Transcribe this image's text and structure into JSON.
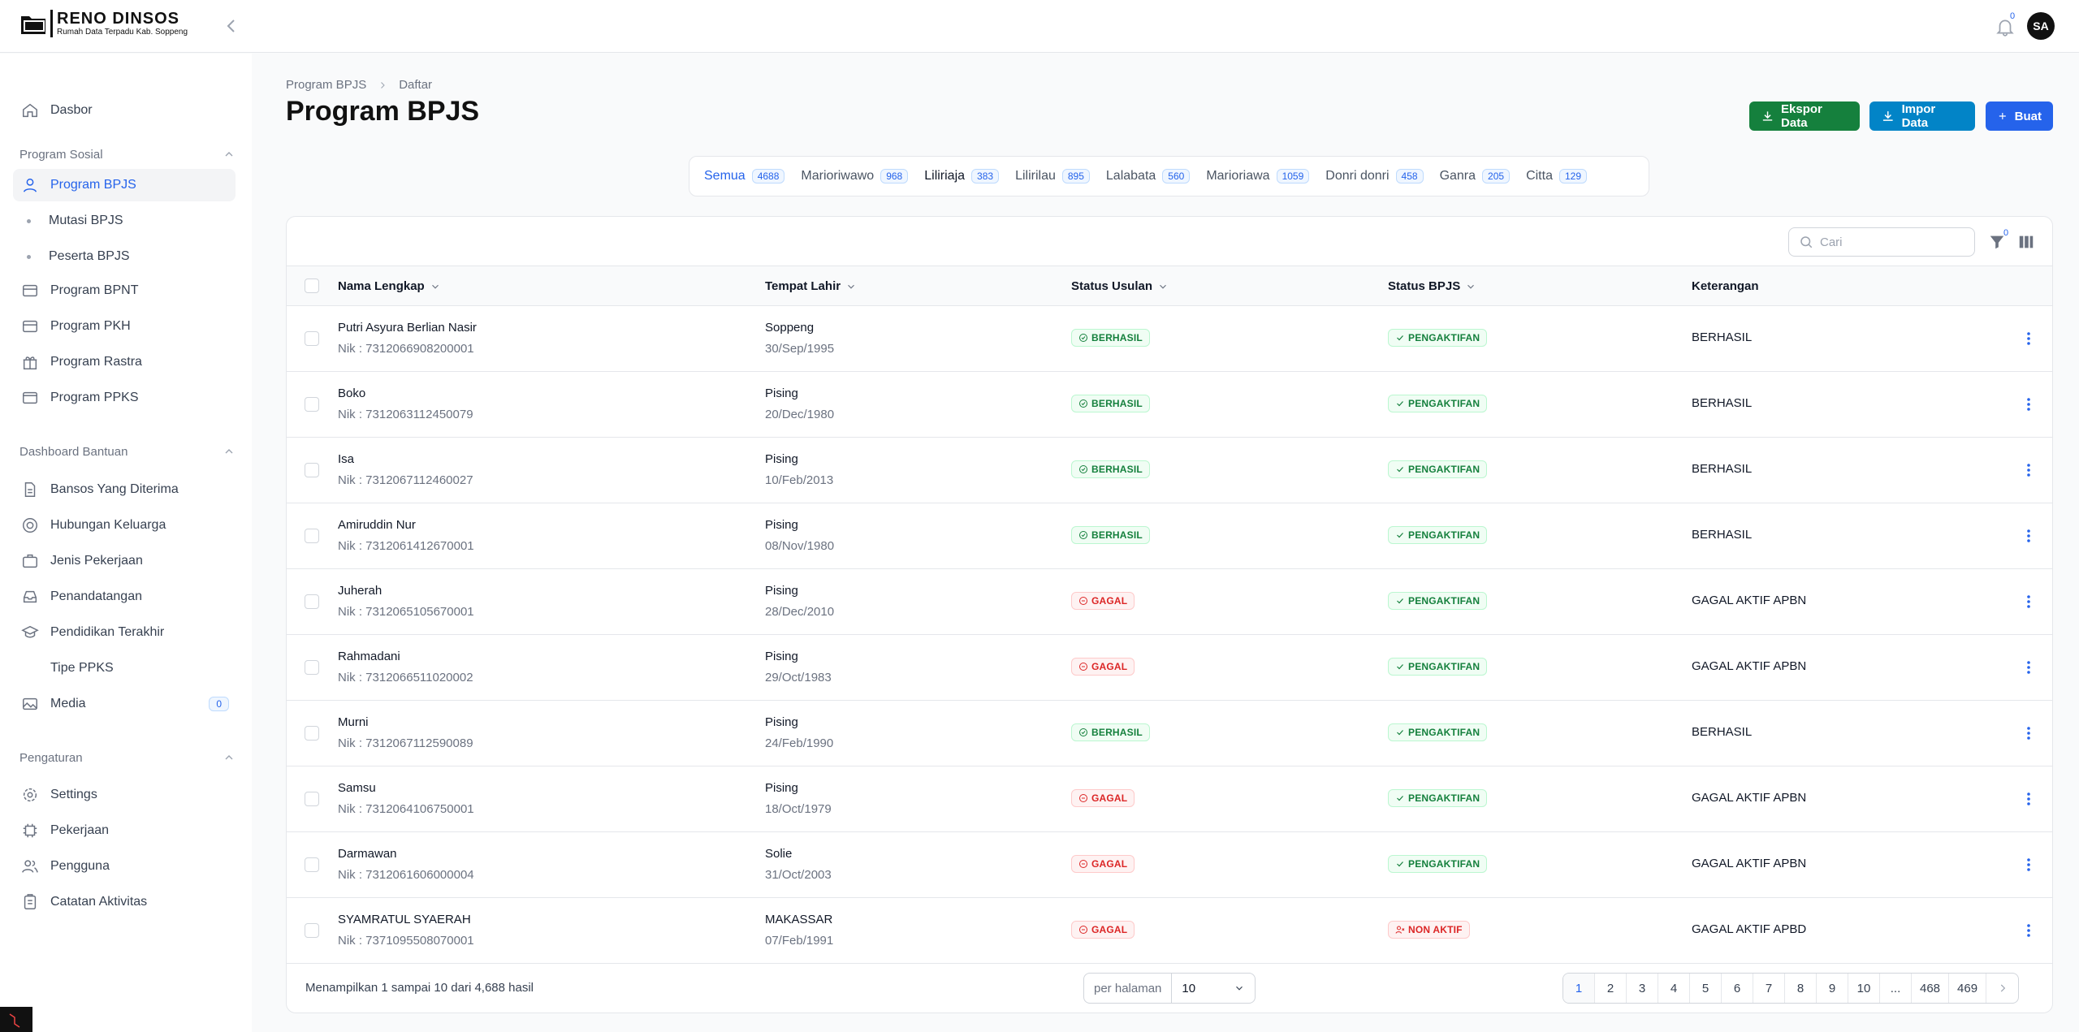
{
  "app": {
    "logo_title": "RENO DINSOS",
    "logo_sub": "Rumah Data Terpadu Kab. Soppeng",
    "notifications": "0",
    "avatar": "SA"
  },
  "sidebar": {
    "dashboard": "Dasbor",
    "groups": [
      {
        "label": "Program Sosial"
      },
      {
        "label": "Dashboard Bantuan"
      },
      {
        "label": "Pengaturan"
      }
    ],
    "program_sosial": [
      "Program BPJS",
      "Mutasi BPJS",
      "Peserta BPJS",
      "Program BPNT",
      "Program PKH",
      "Program Rastra",
      "Program PPKS"
    ],
    "dashboard_bantuan": [
      "Bansos Yang Diterima",
      "Hubungan Keluarga",
      "Jenis Pekerjaan",
      "Penandatangan",
      "Pendidikan Terakhir",
      "Tipe PPKS",
      "Media"
    ],
    "media_count": "0",
    "pengaturan": [
      "Settings",
      "Pekerjaan",
      "Pengguna",
      "Catatan Aktivitas"
    ]
  },
  "page": {
    "breadcrumb": [
      "Program BPJS",
      "Daftar"
    ],
    "title": "Program BPJS",
    "buttons": {
      "export": "Ekspor Data",
      "import": "Impor Data",
      "create": "Buat"
    }
  },
  "tabs": [
    {
      "label": "Semua",
      "count": "4688"
    },
    {
      "label": "Marioriwawo",
      "count": "968"
    },
    {
      "label": "Liliriaja",
      "count": "383"
    },
    {
      "label": "Lilirilau",
      "count": "895"
    },
    {
      "label": "Lalabata",
      "count": "560"
    },
    {
      "label": "Marioriawa",
      "count": "1059"
    },
    {
      "label": "Donri donri",
      "count": "458"
    },
    {
      "label": "Ganra",
      "count": "205"
    },
    {
      "label": "Citta",
      "count": "129"
    }
  ],
  "table": {
    "search_placeholder": "Cari",
    "filter_count": "0",
    "headers": [
      "Nama Lengkap",
      "Tempat Lahir",
      "Status Usulan",
      "Status BPJS",
      "Keterangan"
    ],
    "rows": [
      {
        "name": "Putri Asyura Berlian Nasir",
        "nik": "Nik : 7312066908200001",
        "place": "Soppeng",
        "date": "30/Sep/1995",
        "usulan": "BERHASIL",
        "bpjs": "PENGAKTIFAN",
        "ket": "BERHASIL"
      },
      {
        "name": "Boko",
        "nik": "Nik : 7312063112450079",
        "place": "Pising",
        "date": "20/Dec/1980",
        "usulan": "BERHASIL",
        "bpjs": "PENGAKTIFAN",
        "ket": "BERHASIL"
      },
      {
        "name": "Isa",
        "nik": "Nik : 7312067112460027",
        "place": "Pising",
        "date": "10/Feb/2013",
        "usulan": "BERHASIL",
        "bpjs": "PENGAKTIFAN",
        "ket": "BERHASIL"
      },
      {
        "name": "Amiruddin Nur",
        "nik": "Nik : 7312061412670001",
        "place": "Pising",
        "date": "08/Nov/1980",
        "usulan": "BERHASIL",
        "bpjs": "PENGAKTIFAN",
        "ket": "BERHASIL"
      },
      {
        "name": "Juherah",
        "nik": "Nik : 7312065105670001",
        "place": "Pising",
        "date": "28/Dec/2010",
        "usulan": "GAGAL",
        "bpjs": "PENGAKTIFAN",
        "ket": "GAGAL AKTIF APBN"
      },
      {
        "name": "Rahmadani",
        "nik": "Nik : 7312066511020002",
        "place": "Pising",
        "date": "29/Oct/1983",
        "usulan": "GAGAL",
        "bpjs": "PENGAKTIFAN",
        "ket": "GAGAL AKTIF APBN"
      },
      {
        "name": "Murni",
        "nik": "Nik : 7312067112590089",
        "place": "Pising",
        "date": "24/Feb/1990",
        "usulan": "BERHASIL",
        "bpjs": "PENGAKTIFAN",
        "ket": "BERHASIL"
      },
      {
        "name": "Samsu",
        "nik": "Nik : 7312064106750001",
        "place": "Pising",
        "date": "18/Oct/1979",
        "usulan": "GAGAL",
        "bpjs": "PENGAKTIFAN",
        "ket": "GAGAL AKTIF APBN"
      },
      {
        "name": "Darmawan",
        "nik": "Nik : 7312061606000004",
        "place": "Solie",
        "date": "31/Oct/2003",
        "usulan": "GAGAL",
        "bpjs": "PENGAKTIFAN",
        "ket": "GAGAL AKTIF APBN"
      },
      {
        "name": "SYAMRATUL SYAERAH",
        "nik": "Nik : 7371095508070001",
        "place": "MAKASSAR",
        "date": "07/Feb/1991",
        "usulan": "GAGAL",
        "bpjs": "NON AKTIF",
        "ket": "GAGAL AKTIF APBD"
      }
    ]
  },
  "footer": {
    "info": "Menampilkan 1 sampai 10 dari 4,688 hasil",
    "per_page_label": "per halaman",
    "per_page_value": "10",
    "pages": [
      "1",
      "2",
      "3",
      "4",
      "5",
      "6",
      "7",
      "8",
      "9",
      "10",
      "...",
      "468",
      "469"
    ]
  },
  "colors": {
    "primary": "#2563eb",
    "success": "#15803d",
    "danger": "#dc2626",
    "export": "#15803d",
    "import": "#0284c7"
  }
}
